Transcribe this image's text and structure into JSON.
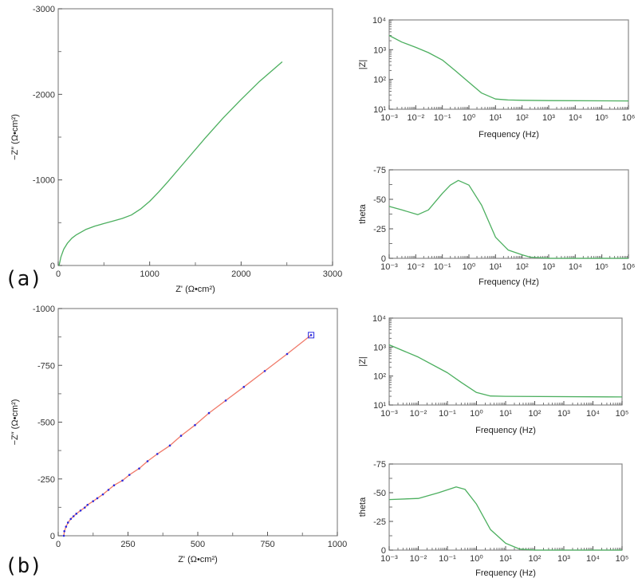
{
  "panel_labels": [
    "(a)",
    "(b)"
  ],
  "colors": {
    "green": "#4caf5f",
    "fit_red": "#f07a6a",
    "points_blue": "#2a2ae0",
    "frame": "#888888"
  },
  "chart_data": [
    {
      "id": "a-nyquist",
      "type": "line",
      "panel": "(a)",
      "xlabel": "Z' (Ω•cm²)",
      "ylabel": "−Z″ (Ω•cm²)",
      "xlim": [
        0,
        3000
      ],
      "ylim": [
        0,
        -3000
      ],
      "xscale": "linear",
      "yscale": "linear",
      "xticks": [
        0,
        1000,
        2000,
        3000
      ],
      "xtick_labels": [
        "0",
        "1000",
        "2000",
        "3000"
      ],
      "xminor": [
        500,
        1500,
        2500
      ],
      "yticks": [
        0,
        -1000,
        -2000,
        -3000
      ],
      "ytick_labels": [
        "0",
        "-1000",
        "-2000",
        "-3000"
      ],
      "yminor": [
        -500,
        -1500,
        -2500
      ],
      "series": [
        {
          "color": "green",
          "marker": "none",
          "x": [
            10,
            30,
            60,
            100,
            150,
            200,
            300,
            400,
            500,
            600,
            700,
            800,
            900,
            1000,
            1100,
            1200,
            1400,
            1600,
            1800,
            2000,
            2200,
            2450
          ],
          "y": [
            0,
            -100,
            -190,
            -260,
            -320,
            -360,
            -420,
            -460,
            -490,
            -520,
            -550,
            -590,
            -660,
            -750,
            -860,
            -980,
            -1230,
            -1480,
            -1720,
            -1940,
            -2150,
            -2380
          ]
        }
      ]
    },
    {
      "id": "a-bode-mod",
      "type": "line",
      "panel": "(a)",
      "xlabel": "Frequency (Hz)",
      "ylabel": "|Z|",
      "xlim": [
        0.001,
        1000000
      ],
      "ylim": [
        10,
        10000
      ],
      "xscale": "log",
      "yscale": "log",
      "xticks": [
        0.001,
        0.01,
        0.1,
        1,
        10,
        100,
        1000,
        10000,
        100000,
        1000000
      ],
      "xtick_labels": [
        "10⁻³",
        "10⁻²",
        "10⁻¹",
        "10⁰",
        "10¹",
        "10²",
        "10³",
        "10⁴",
        "10⁵",
        "10⁶"
      ],
      "yticks": [
        10,
        100,
        1000,
        10000
      ],
      "ytick_labels": [
        "10¹",
        "10²",
        "10³",
        "10⁴"
      ],
      "series": [
        {
          "color": "green",
          "marker": "none",
          "x": [
            0.001,
            0.003,
            0.01,
            0.03,
            0.1,
            0.3,
            1,
            3,
            10,
            30,
            100,
            1000,
            1000000
          ],
          "y": [
            3000,
            1800,
            1200,
            800,
            450,
            200,
            80,
            35,
            22,
            20.5,
            20,
            19.5,
            19
          ]
        }
      ]
    },
    {
      "id": "a-bode-phase",
      "type": "line",
      "panel": "(a)",
      "xlabel": "Frequency (Hz)",
      "ylabel": "theta",
      "xlim": [
        0.001,
        1000000
      ],
      "ylim": [
        0,
        -75
      ],
      "xscale": "log",
      "yscale": "linear",
      "xticks": [
        0.001,
        0.01,
        0.1,
        1,
        10,
        100,
        1000,
        10000,
        100000,
        1000000
      ],
      "xtick_labels": [
        "10⁻³",
        "10⁻²",
        "10⁻¹",
        "10⁰",
        "10¹",
        "10²",
        "10³",
        "10⁴",
        "10⁵",
        "10⁶"
      ],
      "yticks": [
        0,
        -25,
        -50,
        -75
      ],
      "ytick_labels": [
        "0",
        "-25",
        "-50",
        "-75"
      ],
      "series": [
        {
          "color": "green",
          "marker": "none",
          "x": [
            0.001,
            0.003,
            0.012,
            0.03,
            0.1,
            0.2,
            0.4,
            1,
            3,
            10,
            30,
            100,
            200,
            1000,
            1000000
          ],
          "y": [
            -44,
            -41,
            -37,
            -41,
            -55,
            -62,
            -66,
            -62,
            -45,
            -18,
            -7,
            -3,
            -1,
            0,
            0
          ]
        }
      ]
    },
    {
      "id": "b-nyquist",
      "type": "line",
      "panel": "(b)",
      "xlabel": "Z' (Ω•cm²)",
      "ylabel": "−Z″ (Ω•cm²)",
      "xlim": [
        0,
        1000
      ],
      "ylim": [
        0,
        -1000
      ],
      "xscale": "linear",
      "yscale": "linear",
      "xticks": [
        0,
        250,
        500,
        750,
        1000
      ],
      "xtick_labels": [
        "0",
        "250",
        "500",
        "750",
        "1000"
      ],
      "xminor": [
        125,
        375,
        625,
        875
      ],
      "yticks": [
        0,
        -250,
        -500,
        -750,
        -1000
      ],
      "ytick_labels": [
        "0",
        "-250",
        "-500",
        "-750",
        "-1000"
      ],
      "yminor": [
        -125,
        -375,
        -625,
        -875
      ],
      "series": [
        {
          "color": "fit_red",
          "marker": "none",
          "x": [
            20,
            22,
            28,
            35,
            45,
            55,
            65,
            80,
            95,
            105,
            125,
            140,
            160,
            180,
            200,
            230,
            255,
            290,
            320,
            355,
            400,
            440,
            490,
            540,
            600,
            665,
            740,
            820,
            906
          ],
          "y": [
            0,
            -20,
            -40,
            -58,
            -74,
            -86,
            -97,
            -111,
            -124,
            -136,
            -152,
            -165,
            -182,
            -202,
            -222,
            -243,
            -268,
            -296,
            -328,
            -360,
            -397,
            -440,
            -487,
            -540,
            -595,
            -655,
            -725,
            -800,
            -883
          ]
        },
        {
          "color": "points_blue",
          "marker": "dot",
          "x": [
            20,
            22,
            28,
            35,
            45,
            55,
            65,
            80,
            95,
            105,
            125,
            140,
            160,
            180,
            200,
            230,
            255,
            290,
            320,
            355,
            400,
            440,
            490,
            540,
            600,
            665,
            740,
            820,
            906
          ],
          "y": [
            0,
            -20,
            -40,
            -58,
            -74,
            -86,
            -97,
            -111,
            -124,
            -136,
            -152,
            -165,
            -182,
            -202,
            -222,
            -243,
            -268,
            -296,
            -328,
            -360,
            -397,
            -440,
            -487,
            -540,
            -595,
            -655,
            -725,
            -800,
            -883
          ]
        }
      ]
    },
    {
      "id": "b-bode-mod",
      "type": "line",
      "panel": "(b)",
      "xlabel": "Frequency (Hz)",
      "ylabel": "|Z|",
      "xlim": [
        0.001,
        100000
      ],
      "ylim": [
        10,
        10000
      ],
      "xscale": "log",
      "yscale": "log",
      "xticks": [
        0.001,
        0.01,
        0.1,
        1,
        10,
        100,
        1000,
        10000,
        100000
      ],
      "xtick_labels": [
        "10⁻³",
        "10⁻²",
        "10⁻¹",
        "10⁰",
        "10¹",
        "10²",
        "10³",
        "10⁴",
        "10⁵"
      ],
      "yticks": [
        10,
        100,
        1000,
        10000
      ],
      "ytick_labels": [
        "10¹",
        "10²",
        "10³",
        "10⁴"
      ],
      "series": [
        {
          "color": "green",
          "marker": "none",
          "x": [
            0.001,
            0.01,
            0.1,
            0.3,
            1,
            3,
            10,
            100000
          ],
          "y": [
            1200,
            450,
            130,
            60,
            27,
            20.5,
            20,
            19
          ]
        }
      ]
    },
    {
      "id": "b-bode-phase",
      "type": "line",
      "panel": "(b)",
      "xlabel": "Frequency (Hz)",
      "ylabel": "theta",
      "xlim": [
        0.001,
        100000
      ],
      "ylim": [
        0,
        -75
      ],
      "xscale": "log",
      "yscale": "linear",
      "xticks": [
        0.001,
        0.01,
        0.1,
        1,
        10,
        100,
        1000,
        10000,
        100000
      ],
      "xtick_labels": [
        "10⁻³",
        "10⁻²",
        "10⁻¹",
        "10⁰",
        "10¹",
        "10²",
        "10³",
        "10⁴",
        "10⁵"
      ],
      "yticks": [
        0,
        -25,
        -50,
        -75
      ],
      "ytick_labels": [
        "0",
        "-25",
        "-50",
        "-75"
      ],
      "series": [
        {
          "color": "green",
          "marker": "none",
          "x": [
            0.001,
            0.01,
            0.05,
            0.2,
            0.4,
            1,
            3,
            10,
            30,
            100,
            100000
          ],
          "y": [
            -44,
            -45,
            -50,
            -55,
            -53,
            -40,
            -18,
            -6,
            -1,
            0,
            0
          ]
        }
      ]
    }
  ]
}
